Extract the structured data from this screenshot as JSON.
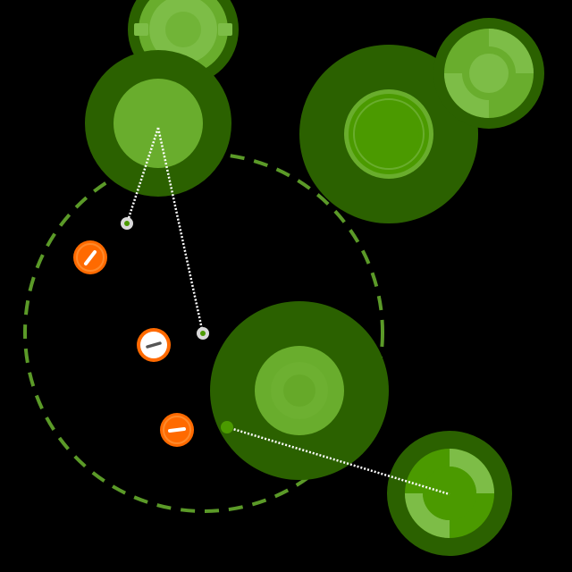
{
  "game": {
    "colors": {
      "background": "#000000",
      "dark_green": "#2b6100",
      "mid_green": "#4b9a00",
      "light_green": "#69ad2d",
      "pale_green": "#7dbd47",
      "dashed_ring": "#5b9a28",
      "orange": "#ff6a00",
      "white": "#ffffff",
      "node_grey": "#d9d9d9"
    },
    "cells": [
      {
        "name": "cell-top-left",
        "style": "plain"
      },
      {
        "name": "cell-top-left-small",
        "style": "gear"
      },
      {
        "name": "cell-top-right-large",
        "style": "ringed"
      },
      {
        "name": "cell-top-right-small",
        "style": "gear"
      },
      {
        "name": "cell-center",
        "style": "plain-large"
      },
      {
        "name": "cell-bottom-right",
        "style": "gear"
      }
    ],
    "units": [
      {
        "name": "orange-unit-upper",
        "kind": "orange"
      },
      {
        "name": "white-unit-selected",
        "kind": "white"
      },
      {
        "name": "orange-unit-lower",
        "kind": "orange"
      }
    ]
  }
}
